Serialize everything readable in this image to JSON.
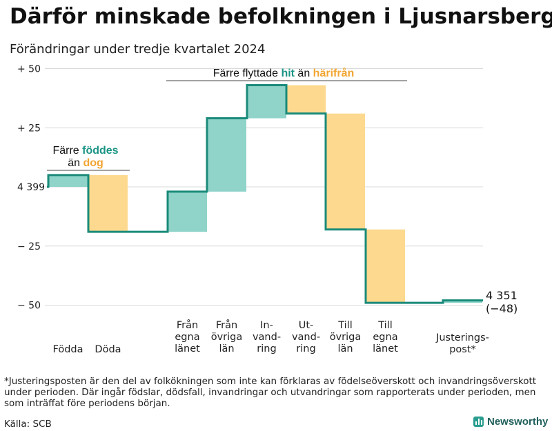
{
  "title": "Därför minskade befolkningen i Ljusnarsberg",
  "subtitle": "Förändringar under tredje kvartalet 2024",
  "footnote": "*Justeringsposten är den del av folkökningen som inte kan förklaras av födelseöverskott och invandringsöverskott under perioden. Där ingår födslar, dödsfall, invandringar och utvandringar som rapporterats under perioden, men som inträffat före periodens början.",
  "source": "Källa: SCB",
  "brand": "Newsworthy",
  "brand_icon": "bar-chart-icon",
  "colors": {
    "increase": "#8fd3c9",
    "decrease": "#fcd98f",
    "line": "#1a8a7a",
    "teal_text": "#1a9484",
    "orange_text": "#f2a531",
    "grid": "#d9d9d9"
  },
  "annotations": {
    "births": {
      "prefix": "Färre",
      "teal": "föddes",
      "mid": "än",
      "orange": "dog"
    },
    "moves": {
      "prefix": "Färre flyttade",
      "teal": "hit",
      "mid": "än",
      "orange": "härifrån"
    }
  },
  "chart_data": {
    "type": "waterfall",
    "start_value": 4399,
    "end_label": "4 351",
    "change_label": "(−48)",
    "y_tick_labels": [
      "+ 50",
      "+ 25",
      "4 399",
      "− 25",
      "− 50"
    ],
    "y_ticks": [
      50,
      25,
      0,
      -25,
      -50
    ],
    "ylim": [
      -52,
      50
    ],
    "categories": [
      "Födda",
      "Döda",
      "Från egna länet",
      "Från övriga län",
      "In-vandring",
      "Ut-vandring",
      "Till övriga län",
      "Till egna länet",
      "Justerings-post*"
    ],
    "category_lines": [
      [
        "Födda"
      ],
      [
        "Döda"
      ],
      [
        "Från",
        "egna",
        "länet"
      ],
      [
        "Från",
        "övriga",
        "län"
      ],
      [
        "In-",
        "vand-",
        "ring"
      ],
      [
        "Ut-",
        "vand-",
        "ring"
      ],
      [
        "Till",
        "övriga",
        "län"
      ],
      [
        "Till",
        "egna",
        "länet"
      ],
      [
        "Justerings-",
        "post*"
      ]
    ],
    "values": [
      5,
      -24,
      17,
      31,
      14,
      -12,
      -49,
      -31,
      1
    ],
    "grid": true
  }
}
